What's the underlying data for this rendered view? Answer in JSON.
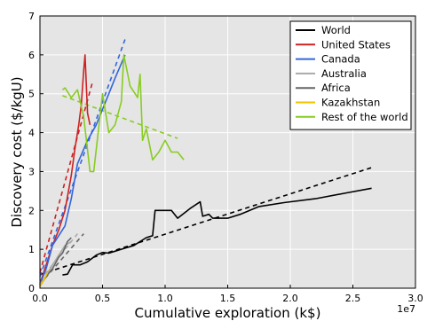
{
  "chart_data": {
    "type": "line",
    "xlabel": "Cumulative exploration (k$)",
    "ylabel": "Discovery cost ($/kgU)",
    "x_offset_label": "1e7",
    "xlim": [
      0,
      3.0
    ],
    "ylim": [
      0,
      7
    ],
    "x_ticks": [
      "0.0",
      "0.5",
      "1.0",
      "1.5",
      "2.0",
      "2.5",
      "3.0"
    ],
    "y_ticks": [
      "0",
      "1",
      "2",
      "3",
      "4",
      "5",
      "6",
      "7"
    ],
    "x_tick_values": [
      0,
      0.5,
      1.0,
      1.5,
      2.0,
      2.5,
      3.0
    ],
    "y_tick_values": [
      0,
      1,
      2,
      3,
      4,
      5,
      6,
      7
    ],
    "grid": true,
    "background": "#e5e5e5",
    "legend_position": "top-right",
    "series": [
      {
        "name": "World",
        "color": "#000000",
        "values": [
          [
            0.18,
            0.34
          ],
          [
            0.22,
            0.36
          ],
          [
            0.26,
            0.6
          ],
          [
            0.32,
            0.6
          ],
          [
            0.38,
            0.68
          ],
          [
            0.45,
            0.85
          ],
          [
            0.5,
            0.92
          ],
          [
            0.55,
            0.9
          ],
          [
            0.65,
            1.0
          ],
          [
            0.75,
            1.1
          ],
          [
            0.85,
            1.3
          ],
          [
            0.9,
            1.35
          ],
          [
            0.92,
            2.0
          ],
          [
            1.05,
            2.0
          ],
          [
            1.1,
            1.8
          ],
          [
            1.2,
            2.05
          ],
          [
            1.28,
            2.22
          ],
          [
            1.3,
            1.85
          ],
          [
            1.35,
            1.9
          ],
          [
            1.38,
            1.8
          ],
          [
            1.5,
            1.8
          ],
          [
            1.6,
            1.9
          ],
          [
            1.75,
            2.1
          ],
          [
            1.95,
            2.2
          ],
          [
            2.2,
            2.3
          ],
          [
            2.45,
            2.45
          ],
          [
            2.65,
            2.57
          ]
        ],
        "fit": [
          [
            0,
            0.35
          ],
          [
            2.65,
            3.1
          ]
        ]
      },
      {
        "name": "United States",
        "color": "#cc2222",
        "values": [
          [
            0,
            0.1
          ],
          [
            0.05,
            0.6
          ],
          [
            0.1,
            1.1
          ],
          [
            0.15,
            1.5
          ],
          [
            0.2,
            2.0
          ],
          [
            0.25,
            2.9
          ],
          [
            0.28,
            3.6
          ],
          [
            0.31,
            4.2
          ],
          [
            0.33,
            4.7
          ],
          [
            0.35,
            5.6
          ],
          [
            0.36,
            6.0
          ],
          [
            0.38,
            4.5
          ],
          [
            0.4,
            4.2
          ]
        ],
        "fit": [
          [
            0,
            0.4
          ],
          [
            0.42,
            5.3
          ]
        ]
      },
      {
        "name": "Canada",
        "color": "#3366dd",
        "values": [
          [
            0,
            0.1
          ],
          [
            0.05,
            0.5
          ],
          [
            0.1,
            1.1
          ],
          [
            0.2,
            1.6
          ],
          [
            0.25,
            2.3
          ],
          [
            0.3,
            3.2
          ],
          [
            0.38,
            3.8
          ],
          [
            0.45,
            4.2
          ],
          [
            0.55,
            5.0
          ],
          [
            0.6,
            5.4
          ],
          [
            0.68,
            6.0
          ]
        ],
        "fit": [
          [
            0,
            0.3
          ],
          [
            0.68,
            6.4
          ]
        ]
      },
      {
        "name": "Australia",
        "color": "#aaaaaa",
        "values": [
          [
            0,
            0.1
          ],
          [
            0.05,
            0.3
          ],
          [
            0.1,
            0.6
          ],
          [
            0.15,
            0.85
          ],
          [
            0.2,
            1.1
          ],
          [
            0.25,
            1.2
          ]
        ],
        "fit": [
          [
            0,
            0.2
          ],
          [
            0.3,
            1.4
          ]
        ]
      },
      {
        "name": "Africa",
        "color": "#666666",
        "values": [
          [
            0,
            0.05
          ],
          [
            0.05,
            0.3
          ],
          [
            0.1,
            0.5
          ],
          [
            0.15,
            0.8
          ],
          [
            0.18,
            0.9
          ],
          [
            0.22,
            1.2
          ],
          [
            0.25,
            1.3
          ]
        ],
        "fit": [
          [
            0,
            0.1
          ],
          [
            0.35,
            1.4
          ]
        ]
      },
      {
        "name": "Kazakhstan",
        "color": "#f2c200",
        "values": [
          [
            0,
            0.05
          ],
          [
            0.03,
            0.2
          ],
          [
            0.06,
            0.4
          ]
        ],
        "fit": [
          [
            0,
            0.05
          ],
          [
            0.08,
            0.5
          ]
        ]
      },
      {
        "name": "Rest of the world",
        "color": "#88cc22",
        "values": [
          [
            0.18,
            5.1
          ],
          [
            0.2,
            5.15
          ],
          [
            0.25,
            4.9
          ],
          [
            0.3,
            5.1
          ],
          [
            0.35,
            4.4
          ],
          [
            0.4,
            3.0
          ],
          [
            0.43,
            3.0
          ],
          [
            0.5,
            5.0
          ],
          [
            0.55,
            4.0
          ],
          [
            0.6,
            4.2
          ],
          [
            0.65,
            4.8
          ],
          [
            0.67,
            6.0
          ],
          [
            0.72,
            5.2
          ],
          [
            0.78,
            4.9
          ],
          [
            0.8,
            5.5
          ],
          [
            0.82,
            3.8
          ],
          [
            0.85,
            4.1
          ],
          [
            0.9,
            3.3
          ],
          [
            0.95,
            3.5
          ],
          [
            1.0,
            3.8
          ],
          [
            1.05,
            3.5
          ],
          [
            1.1,
            3.5
          ],
          [
            1.15,
            3.3
          ]
        ],
        "fit": [
          [
            0.18,
            4.95
          ],
          [
            1.1,
            3.85
          ]
        ]
      }
    ]
  }
}
